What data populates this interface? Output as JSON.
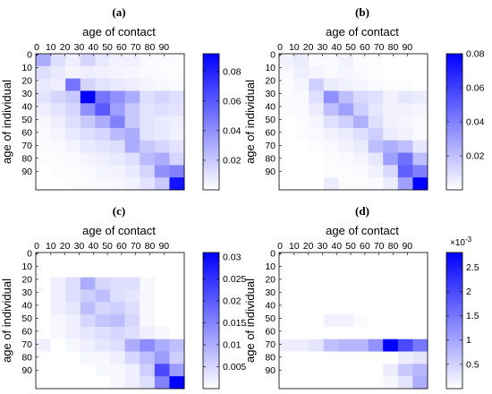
{
  "colors": {
    "max": "#0000FF",
    "min": "#FFFFFF"
  },
  "chart_data": [
    {
      "type": "heatmap",
      "panel_label": "(a)",
      "xlabel": "age of contact",
      "ylabel": "age of individual",
      "x_ticks": [
        "0",
        "10",
        "20",
        "30",
        "40",
        "50",
        "60",
        "70",
        "80",
        "90"
      ],
      "y_ticks": [
        "0",
        "10",
        "20",
        "30",
        "40",
        "50",
        "60",
        "70",
        "80",
        "90"
      ],
      "colorbar_ticks": [
        "0.02",
        "0.04",
        "0.06",
        "0.08"
      ],
      "colorbar_tick_values": [
        0.02,
        0.04,
        0.06,
        0.08
      ],
      "colorbar_exponent": "",
      "vmin": 0,
      "vmax": 0.092,
      "matrix": [
        [
          0.03,
          0.012,
          0.006,
          0.015,
          0.008,
          0.005,
          0.005,
          0.002,
          0.002,
          0.001
        ],
        [
          0.012,
          0.008,
          0.004,
          0.006,
          0.005,
          0.004,
          0.003,
          0.002,
          0.001,
          0.001
        ],
        [
          0.008,
          0.006,
          0.05,
          0.015,
          0.01,
          0.008,
          0.006,
          0.004,
          0.003,
          0.002
        ],
        [
          0.01,
          0.015,
          0.02,
          0.092,
          0.05,
          0.04,
          0.03,
          0.012,
          0.015,
          0.012
        ],
        [
          0.006,
          0.01,
          0.015,
          0.04,
          0.06,
          0.035,
          0.02,
          0.01,
          0.012,
          0.01
        ],
        [
          0.003,
          0.006,
          0.012,
          0.02,
          0.03,
          0.045,
          0.02,
          0.01,
          0.008,
          0.006
        ],
        [
          0.002,
          0.004,
          0.008,
          0.012,
          0.015,
          0.025,
          0.03,
          0.01,
          0.008,
          0.005
        ],
        [
          0.001,
          0.002,
          0.004,
          0.008,
          0.01,
          0.012,
          0.03,
          0.02,
          0.015,
          0.01
        ],
        [
          0.001,
          0.001,
          0.002,
          0.004,
          0.006,
          0.008,
          0.012,
          0.025,
          0.03,
          0.015
        ],
        [
          0.0,
          0.001,
          0.001,
          0.002,
          0.004,
          0.005,
          0.008,
          0.015,
          0.04,
          0.045
        ],
        [
          0.0,
          0.0,
          0.001,
          0.001,
          0.002,
          0.003,
          0.005,
          0.01,
          0.02,
          0.085
        ]
      ]
    },
    {
      "type": "heatmap",
      "panel_label": "(b)",
      "xlabel": "age of contact",
      "ylabel": "age of individual",
      "x_ticks": [
        "0",
        "10",
        "20",
        "30",
        "40",
        "50",
        "60",
        "70",
        "80",
        "90"
      ],
      "y_ticks": [
        "0",
        "10",
        "20",
        "30",
        "40",
        "50",
        "60",
        "70",
        "80",
        "90"
      ],
      "colorbar_ticks": [
        "0.02",
        "0.04",
        "0.06",
        "0.08"
      ],
      "colorbar_tick_values": [
        0.02,
        0.04,
        0.06,
        0.08
      ],
      "colorbar_exponent": "",
      "vmin": 0,
      "vmax": 0.08,
      "matrix": [
        [
          0.004,
          0.006,
          0.002,
          0.002,
          0.004,
          0.001,
          0.001,
          0.0,
          0.0,
          0.0
        ],
        [
          0.002,
          0.005,
          0.003,
          0.002,
          0.003,
          0.002,
          0.001,
          0.0,
          0.0,
          0.0
        ],
        [
          0.001,
          0.003,
          0.015,
          0.006,
          0.004,
          0.003,
          0.002,
          0.001,
          0.001,
          0.0
        ],
        [
          0.001,
          0.002,
          0.01,
          0.035,
          0.02,
          0.012,
          0.01,
          0.004,
          0.008,
          0.006
        ],
        [
          0.001,
          0.002,
          0.006,
          0.02,
          0.03,
          0.015,
          0.008,
          0.004,
          0.004,
          0.003
        ],
        [
          0.0,
          0.001,
          0.003,
          0.01,
          0.015,
          0.025,
          0.01,
          0.004,
          0.003,
          0.002
        ],
        [
          0.0,
          0.001,
          0.002,
          0.004,
          0.006,
          0.01,
          0.015,
          0.006,
          0.004,
          0.002
        ],
        [
          0.0,
          0.0,
          0.001,
          0.002,
          0.004,
          0.006,
          0.02,
          0.025,
          0.02,
          0.008
        ],
        [
          0.0,
          0.0,
          0.0,
          0.001,
          0.002,
          0.003,
          0.008,
          0.03,
          0.045,
          0.02
        ],
        [
          0.0,
          0.0,
          0.0,
          0.001,
          0.001,
          0.002,
          0.004,
          0.012,
          0.05,
          0.04
        ],
        [
          0.0,
          0.0,
          0.0,
          0.006,
          0.001,
          0.001,
          0.002,
          0.006,
          0.03,
          0.08
        ]
      ]
    },
    {
      "type": "heatmap",
      "panel_label": "(c)",
      "xlabel": "age of contact",
      "ylabel": "age of individual",
      "x_ticks": [
        "0",
        "10",
        "20",
        "30",
        "40",
        "50",
        "60",
        "70",
        "80",
        "90"
      ],
      "y_ticks": [
        "0",
        "10",
        "20",
        "30",
        "40",
        "50",
        "60",
        "70",
        "80",
        "90"
      ],
      "colorbar_ticks": [
        "0.005",
        "0.01",
        "0.015",
        "0.02",
        "0.025",
        "0.03"
      ],
      "colorbar_tick_values": [
        0.005,
        0.01,
        0.015,
        0.02,
        0.025,
        0.03
      ],
      "colorbar_exponent": "",
      "vmin": 0,
      "vmax": 0.031,
      "matrix": [
        [
          0.0,
          0.0,
          0.0,
          0.0,
          0.0,
          0.0,
          0.0,
          0.0,
          0.0,
          0.0
        ],
        [
          0.0,
          0.0,
          0.0,
          0.0,
          0.0,
          0.0,
          0.0,
          0.0,
          0.0,
          0.0
        ],
        [
          0.0,
          0.002,
          0.004,
          0.01,
          0.005,
          0.004,
          0.004,
          0.001,
          0.0,
          0.0
        ],
        [
          0.0,
          0.002,
          0.004,
          0.006,
          0.008,
          0.004,
          0.003,
          0.001,
          0.0,
          0.0
        ],
        [
          0.0,
          0.002,
          0.003,
          0.008,
          0.005,
          0.006,
          0.004,
          0.001,
          0.0,
          0.0
        ],
        [
          0.0,
          0.001,
          0.002,
          0.005,
          0.007,
          0.008,
          0.005,
          0.001,
          0.0,
          0.0
        ],
        [
          0.0,
          0.001,
          0.002,
          0.003,
          0.004,
          0.005,
          0.004,
          0.002,
          0.001,
          0.0
        ],
        [
          0.002,
          0.0,
          0.001,
          0.002,
          0.003,
          0.004,
          0.01,
          0.014,
          0.01,
          0.008
        ],
        [
          0.0,
          0.0,
          0.0,
          0.001,
          0.001,
          0.002,
          0.005,
          0.008,
          0.012,
          0.006
        ],
        [
          0.0,
          0.0,
          0.0,
          0.0,
          0.001,
          0.001,
          0.002,
          0.006,
          0.022,
          0.012
        ],
        [
          0.0,
          0.0,
          0.0,
          0.0,
          0.0,
          0.001,
          0.002,
          0.004,
          0.015,
          0.031
        ]
      ]
    },
    {
      "type": "heatmap",
      "panel_label": "(d)",
      "xlabel": "age of contact",
      "ylabel": "age of individual",
      "x_ticks": [
        "0",
        "10",
        "20",
        "30",
        "40",
        "50",
        "60",
        "70",
        "80",
        "90"
      ],
      "y_ticks": [
        "0",
        "10",
        "20",
        "30",
        "40",
        "50",
        "60",
        "70",
        "80",
        "90"
      ],
      "colorbar_ticks": [
        "0.5",
        "1",
        "1.5",
        "2",
        "2.5"
      ],
      "colorbar_tick_values": [
        0.5,
        1,
        1.5,
        2,
        2.5
      ],
      "colorbar_exponent": "×10",
      "colorbar_exponent_power": "-3",
      "vmin": 0,
      "vmax": 2.8,
      "matrix": [
        [
          0,
          0,
          0,
          0,
          0,
          0,
          0,
          0,
          0,
          0
        ],
        [
          0,
          0,
          0,
          0,
          0,
          0,
          0,
          0,
          0,
          0
        ],
        [
          0,
          0,
          0,
          0,
          0,
          0,
          0,
          0,
          0,
          0
        ],
        [
          0,
          0,
          0,
          0,
          0,
          0,
          0,
          0,
          0,
          0
        ],
        [
          0,
          0,
          0,
          0,
          0,
          0,
          0,
          0,
          0,
          0
        ],
        [
          0,
          0,
          0,
          0.15,
          0.15,
          0.05,
          0,
          0,
          0,
          0
        ],
        [
          0,
          0,
          0,
          0,
          0,
          0,
          0,
          0,
          0,
          0
        ],
        [
          0.2,
          0.2,
          0.3,
          0.7,
          0.8,
          0.8,
          1.2,
          2.8,
          2.0,
          1.5
        ],
        [
          0,
          0,
          0,
          0,
          0,
          0,
          0,
          0,
          0.2,
          0.3
        ],
        [
          0,
          0,
          0,
          0,
          0,
          0,
          0,
          0.2,
          0.6,
          0.8
        ],
        [
          0,
          0,
          0,
          0,
          0,
          0,
          0,
          0.1,
          0.3,
          0.9
        ]
      ]
    }
  ]
}
